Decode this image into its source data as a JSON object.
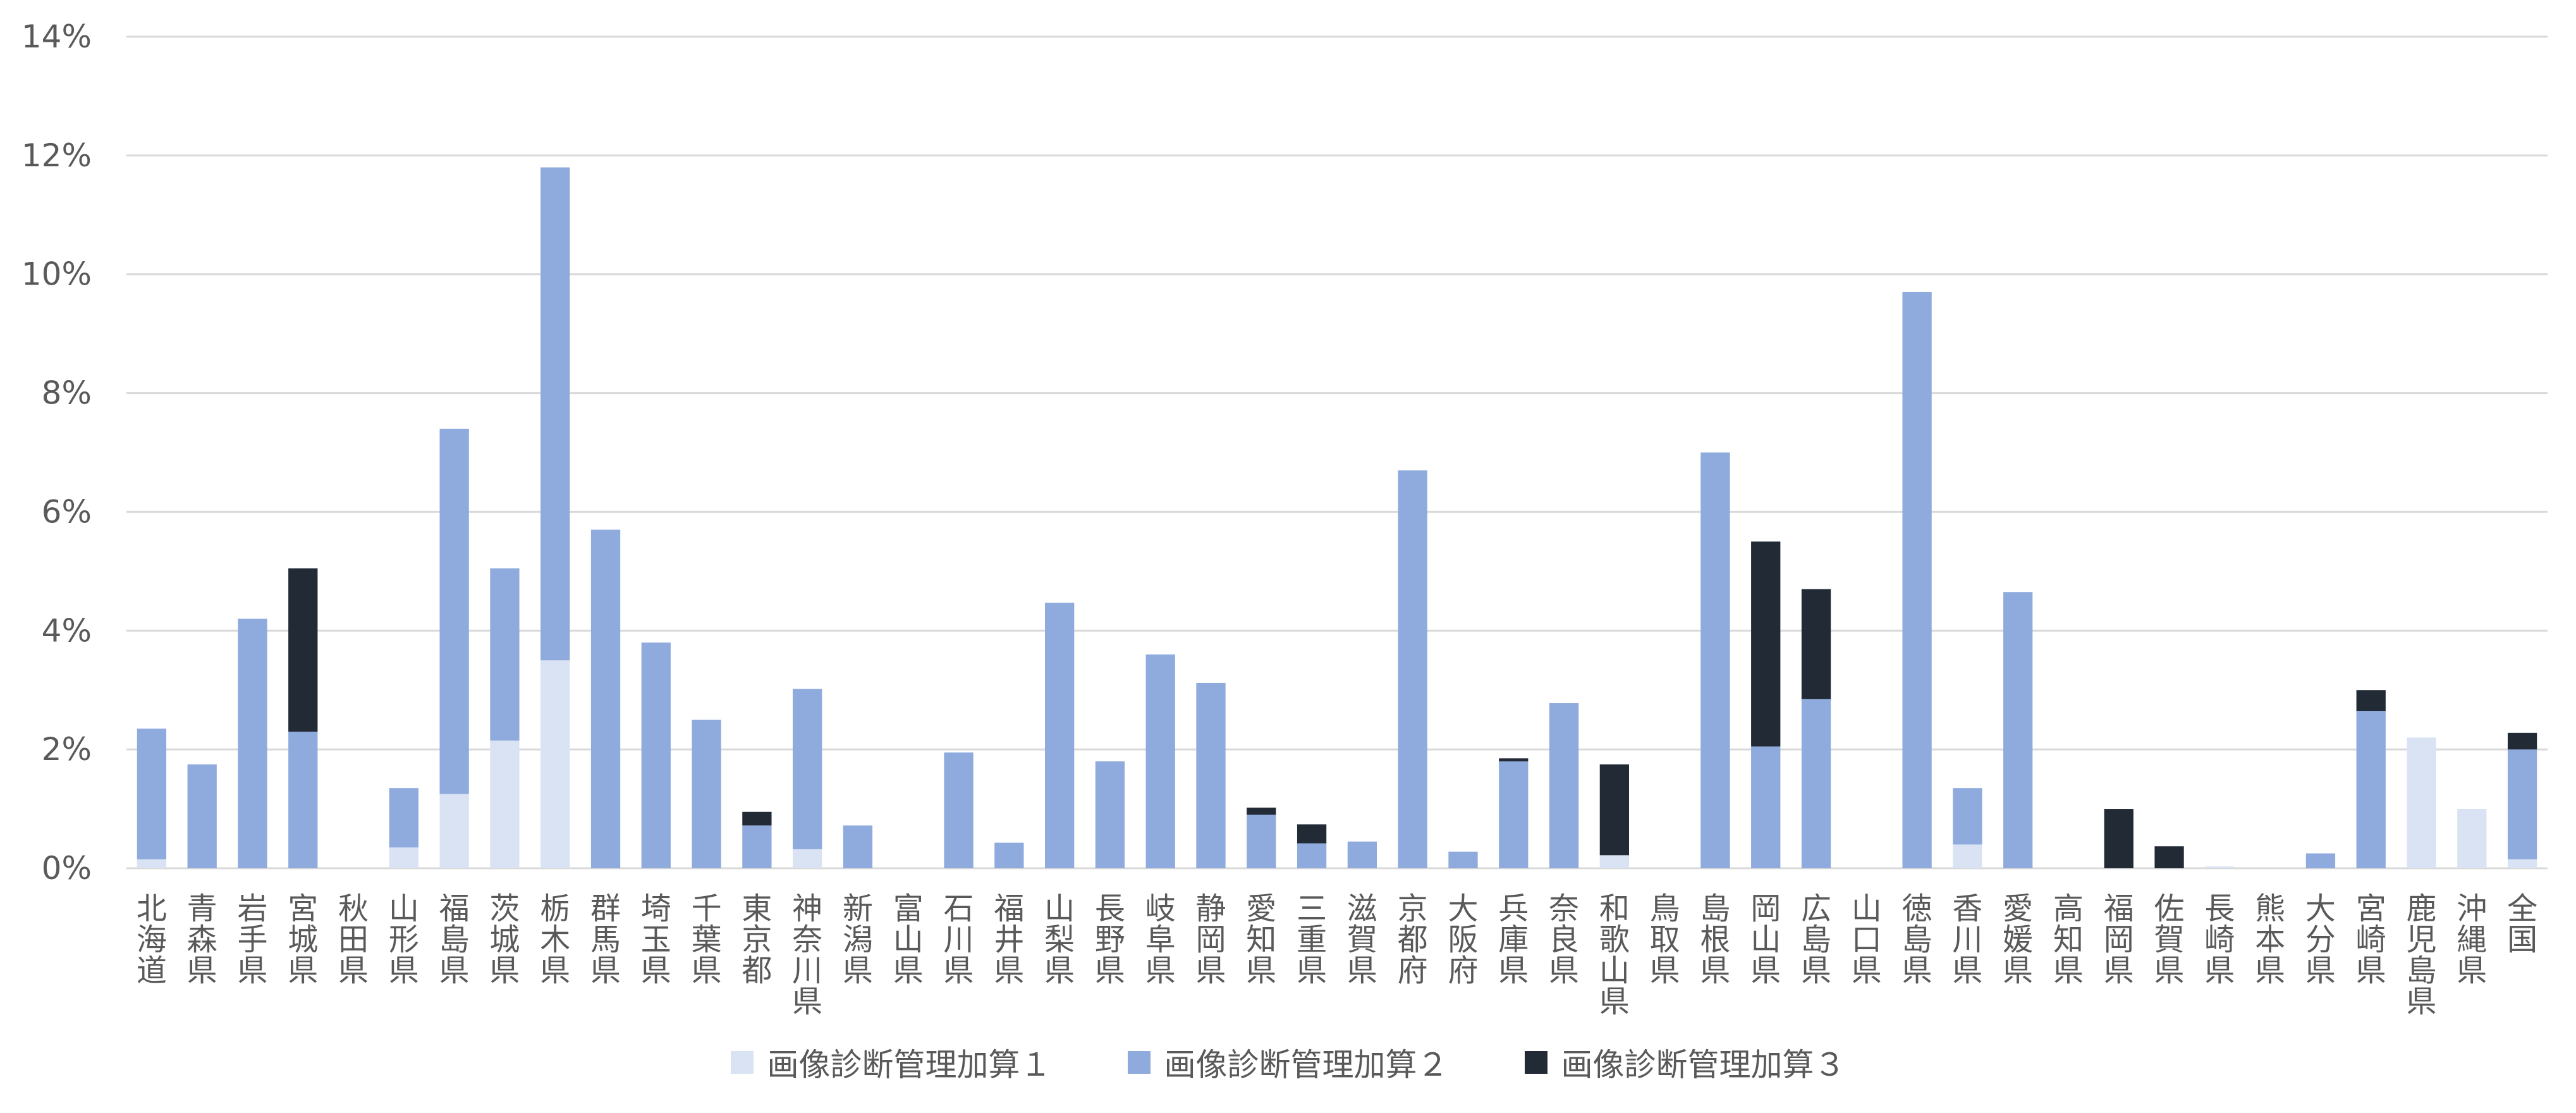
{
  "chart_data": {
    "type": "bar",
    "stacked": true,
    "title": "",
    "xlabel": "",
    "ylabel": "",
    "ylim": [
      0,
      14
    ],
    "y_ticks": [
      "0%",
      "2%",
      "4%",
      "6%",
      "8%",
      "10%",
      "12%",
      "14%"
    ],
    "grid": true,
    "legend_position": "bottom",
    "categories": [
      "北海道",
      "青森県",
      "岩手県",
      "宮城県",
      "秋田県",
      "山形県",
      "福島県",
      "茨城県",
      "栃木県",
      "群馬県",
      "埼玉県",
      "千葉県",
      "東京都",
      "神奈川県",
      "新潟県",
      "富山県",
      "石川県",
      "福井県",
      "山梨県",
      "長野県",
      "岐阜県",
      "静岡県",
      "愛知県",
      "三重県",
      "滋賀県",
      "京都府",
      "大阪府",
      "兵庫県",
      "奈良県",
      "和歌山県",
      "鳥取県",
      "島根県",
      "岡山県",
      "広島県",
      "山口県",
      "徳島県",
      "香川県",
      "愛媛県",
      "高知県",
      "福岡県",
      "佐賀県",
      "長崎県",
      "熊本県",
      "大分県",
      "宮崎県",
      "鹿児島県",
      "沖縄県",
      "全国"
    ],
    "series": [
      {
        "name": "画像診断管理加算１",
        "color": "#dae3f3",
        "values": [
          0.15,
          0,
          0,
          0,
          0,
          0.35,
          1.25,
          2.15,
          3.5,
          0,
          0,
          0,
          0,
          0.32,
          0,
          0,
          0,
          0,
          0,
          0,
          0,
          0,
          0,
          0,
          0,
          0,
          0,
          0,
          0,
          0.22,
          0,
          0,
          0,
          0,
          0,
          0,
          0.4,
          0,
          0,
          0,
          0,
          0.03,
          0,
          0,
          0,
          2.2,
          1.0,
          0.15
        ]
      },
      {
        "name": "画像診断管理加算２",
        "color": "#8faadc",
        "values": [
          2.2,
          1.75,
          4.2,
          2.3,
          0,
          1.0,
          6.15,
          2.9,
          8.3,
          5.7,
          3.8,
          2.5,
          0.72,
          2.7,
          0.72,
          0,
          1.95,
          0.43,
          4.47,
          1.8,
          3.6,
          3.12,
          0.9,
          0.42,
          0.45,
          6.7,
          0.28,
          1.8,
          2.78,
          0,
          0,
          7.0,
          2.05,
          2.85,
          0,
          9.7,
          0.95,
          4.65,
          0,
          0,
          0,
          0,
          0,
          0.25,
          2.65,
          0,
          0,
          1.85
        ]
      },
      {
        "name": "画像診断管理加算３",
        "color": "#222a35",
        "values": [
          0,
          0,
          0,
          2.75,
          0,
          0,
          0,
          0,
          0,
          0,
          0,
          0,
          0.23,
          0,
          0,
          0,
          0,
          0,
          0,
          0,
          0,
          0,
          0.12,
          0.32,
          0,
          0,
          0,
          0.05,
          0,
          1.53,
          0,
          0,
          3.45,
          1.85,
          0,
          0,
          0,
          0,
          0,
          1.0,
          0.37,
          0,
          0,
          0,
          0.35,
          0,
          0,
          0.28
        ]
      }
    ]
  }
}
